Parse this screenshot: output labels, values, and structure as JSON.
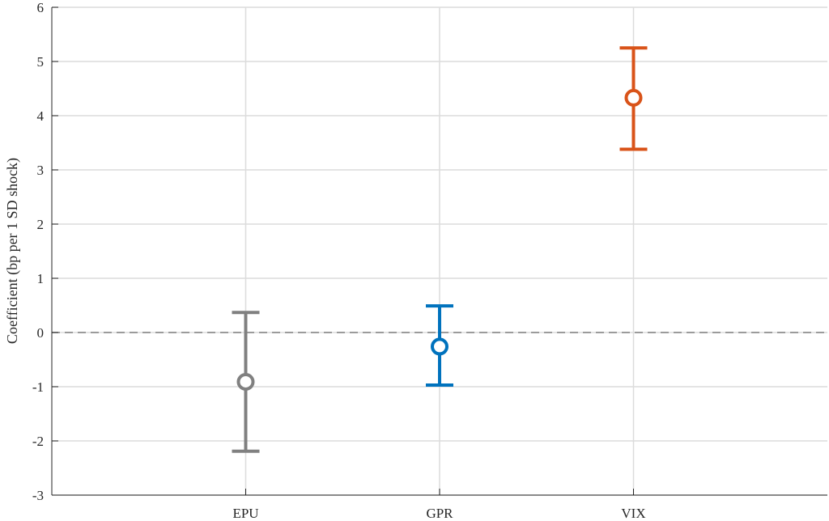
{
  "chart_data": {
    "type": "errorbar",
    "title": "",
    "xlabel": "",
    "ylabel": "Coefficient (bp per 1 SD shock)",
    "categories": [
      "EPU",
      "GPR",
      "VIX"
    ],
    "values": [
      -0.91,
      -0.26,
      4.33
    ],
    "lower": [
      -2.19,
      -0.97,
      3.38
    ],
    "upper": [
      0.37,
      0.49,
      5.25
    ],
    "colors": [
      "#808080",
      "#0072BD",
      "#D95319"
    ],
    "marker": "open-circle",
    "xlim": [
      0,
      4
    ],
    "ylim": [
      -3,
      6
    ],
    "yticks": [
      -3,
      -2,
      -1,
      0,
      1,
      2,
      3,
      4,
      5,
      6
    ],
    "grid": true,
    "reference_line": {
      "y": 0,
      "style": "dashed",
      "color": "#808080"
    }
  }
}
